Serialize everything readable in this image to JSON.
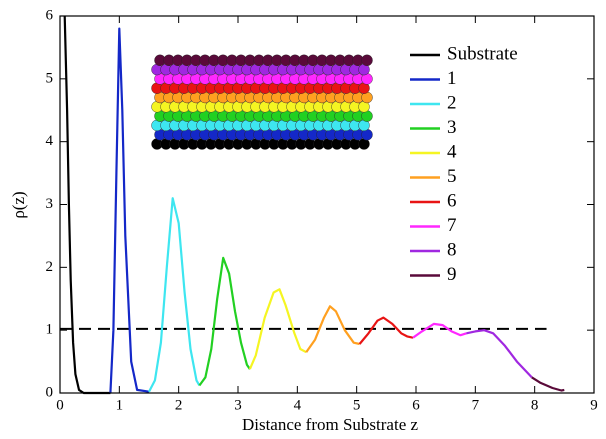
{
  "chart_data": {
    "type": "line",
    "x_label": "Distance from Substrate z",
    "y_label": "ρ(z)",
    "xlim": [
      0,
      9
    ],
    "ylim": [
      0,
      6
    ],
    "xticks": [
      0,
      1,
      2,
      3,
      4,
      5,
      6,
      7,
      8,
      9
    ],
    "yticks": [
      0,
      1,
      2,
      3,
      4,
      5,
      6
    ],
    "legend": "upper right",
    "hline": {
      "y": 1.02,
      "x": [
        0,
        8.2
      ],
      "color": "#000000"
    },
    "series": [
      {
        "name": "Substrate",
        "color": "#000000",
        "x": [
          0.08,
          0.12,
          0.15,
          0.18,
          0.22,
          0.26,
          0.32,
          0.4,
          0.85
        ],
        "values": [
          6,
          4.5,
          3,
          1.8,
          0.8,
          0.3,
          0.05,
          0,
          0
        ]
      },
      {
        "name": "1",
        "color": "#1428c8",
        "x": [
          0.85,
          0.9,
          0.95,
          1.0,
          1.05,
          1.1,
          1.2,
          1.3,
          1.5
        ],
        "values": [
          0,
          1,
          3.5,
          5.8,
          4.5,
          2.5,
          0.5,
          0.05,
          0.02
        ]
      },
      {
        "name": "2",
        "color": "#3ee6f0",
        "x": [
          1.5,
          1.6,
          1.7,
          1.8,
          1.9,
          2.0,
          2.1,
          2.2,
          2.3,
          2.35
        ],
        "values": [
          0.02,
          0.2,
          0.8,
          2.0,
          3.1,
          2.7,
          1.6,
          0.7,
          0.2,
          0.12
        ]
      },
      {
        "name": "3",
        "color": "#22d022",
        "x": [
          2.35,
          2.45,
          2.55,
          2.65,
          2.75,
          2.85,
          2.95,
          3.05,
          3.15,
          3.2
        ],
        "values": [
          0.12,
          0.25,
          0.7,
          1.5,
          2.15,
          1.9,
          1.3,
          0.8,
          0.45,
          0.38
        ]
      },
      {
        "name": "4",
        "color": "#f5f522",
        "x": [
          3.2,
          3.3,
          3.45,
          3.6,
          3.7,
          3.8,
          3.95,
          4.05,
          4.15
        ],
        "values": [
          0.38,
          0.6,
          1.2,
          1.6,
          1.65,
          1.4,
          0.95,
          0.7,
          0.65
        ]
      },
      {
        "name": "5",
        "color": "#ffa020",
        "x": [
          4.15,
          4.3,
          4.45,
          4.55,
          4.65,
          4.8,
          4.95,
          5.05
        ],
        "values": [
          0.65,
          0.85,
          1.2,
          1.38,
          1.3,
          1.0,
          0.8,
          0.78
        ]
      },
      {
        "name": "6",
        "color": "#e81414",
        "x": [
          5.05,
          5.2,
          5.35,
          5.45,
          5.6,
          5.75,
          5.85,
          5.95
        ],
        "values": [
          0.78,
          0.95,
          1.15,
          1.2,
          1.1,
          0.95,
          0.9,
          0.88
        ]
      },
      {
        "name": "7",
        "color": "#ff28ff",
        "x": [
          5.95,
          6.1,
          6.3,
          6.45,
          6.6,
          6.75,
          6.85
        ],
        "values": [
          0.88,
          0.98,
          1.1,
          1.08,
          0.98,
          0.92,
          0.95
        ]
      },
      {
        "name": "8",
        "color": "#a028e0",
        "x": [
          6.85,
          7.0,
          7.15,
          7.3,
          7.5,
          7.7,
          7.85,
          7.95
        ],
        "values": [
          0.95,
          0.98,
          1.0,
          0.95,
          0.75,
          0.5,
          0.35,
          0.25
        ]
      },
      {
        "name": "9",
        "color": "#5a0a3a",
        "x": [
          7.95,
          8.1,
          8.3,
          8.45,
          8.5
        ],
        "values": [
          0.25,
          0.16,
          0.08,
          0.04,
          0.05
        ]
      }
    ]
  }
}
